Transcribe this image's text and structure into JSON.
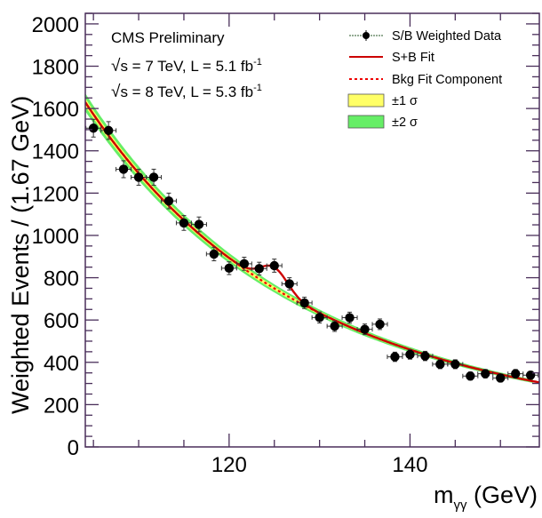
{
  "chart_data": {
    "type": "scatter",
    "title": "",
    "xlabel": "m",
    "xlabel_sub": "γγ",
    "xlabel_unit": " (GeV)",
    "ylabel": "Weighted Events / (1.67 GeV)",
    "xlim": [
      104.1,
      154.3
    ],
    "ylim": [
      0,
      2050
    ],
    "x_major_ticks": [
      120,
      140
    ],
    "x_minor_step": 5,
    "y_major_ticks": [
      0,
      200,
      400,
      600,
      800,
      1000,
      1200,
      1400,
      1600,
      1800,
      2000
    ],
    "y_minor_step": 50,
    "bin_width": 1.67,
    "annotations": [
      {
        "kind": "title",
        "text": "CMS Preliminary"
      },
      {
        "kind": "energy",
        "sqrt_s": "7 TeV",
        "lumi": "5.1 fb",
        "exp": "-1"
      },
      {
        "kind": "energy",
        "sqrt_s": "8 TeV",
        "lumi": "5.3 fb",
        "exp": "-1"
      }
    ],
    "legend": {
      "position": "top-right",
      "entries": [
        {
          "label": "S/B Weighted Data",
          "kind": "marker"
        },
        {
          "label": "S+B Fit",
          "kind": "line",
          "color": "#cc0000"
        },
        {
          "label": "Bkg Fit Component",
          "kind": "dashed",
          "color": "#ee0000"
        },
        {
          "label": "±1 σ",
          "kind": "box",
          "color": "#ffff66"
        },
        {
          "label": "±2 σ",
          "kind": "box",
          "color": "#66ee66"
        }
      ]
    },
    "series": [
      {
        "name": "S/B Weighted Data",
        "x": [
          105.0,
          106.67,
          108.33,
          110.0,
          111.67,
          113.33,
          115.0,
          116.67,
          118.33,
          120.0,
          121.67,
          123.33,
          125.0,
          126.67,
          128.33,
          130.0,
          131.67,
          133.33,
          135.0,
          136.67,
          138.33,
          140.0,
          141.67,
          143.33,
          145.0,
          146.67,
          148.33,
          150.0,
          151.67,
          153.33
        ],
        "y": [
          1507,
          1496,
          1313,
          1275,
          1275,
          1163,
          1059,
          1052,
          912,
          845,
          866,
          843,
          857,
          771,
          681,
          612,
          571,
          611,
          556,
          580,
          426,
          437,
          430,
          391,
          391,
          335,
          346,
          326,
          346,
          339
        ],
        "yerr": [
          42,
          42,
          40,
          38,
          38,
          37,
          35,
          35,
          32,
          30,
          31,
          30,
          31,
          29,
          27,
          26,
          25,
          26,
          25,
          25,
          22,
          22,
          22,
          21,
          21,
          19,
          20,
          19,
          20,
          19
        ]
      },
      {
        "name": "Bkg Fit Component",
        "model": "exp(6.795 - 0.03576*(m-120) + 0.0001286*(m-120)^2)"
      },
      {
        "name": "S+B Fit",
        "model": "bkg + 100*exp(-0.5*((m-125)/1.5)^2)"
      }
    ],
    "band_sigma1_frac": 0.012,
    "band_sigma2_frac": 0.026,
    "colors": {
      "frame": "#4a2f5a",
      "fit": "#cc0000",
      "bkg": "#ee0000",
      "sigma1": "#ffff66",
      "sigma2": "#66ee66",
      "data": "#000000"
    }
  }
}
